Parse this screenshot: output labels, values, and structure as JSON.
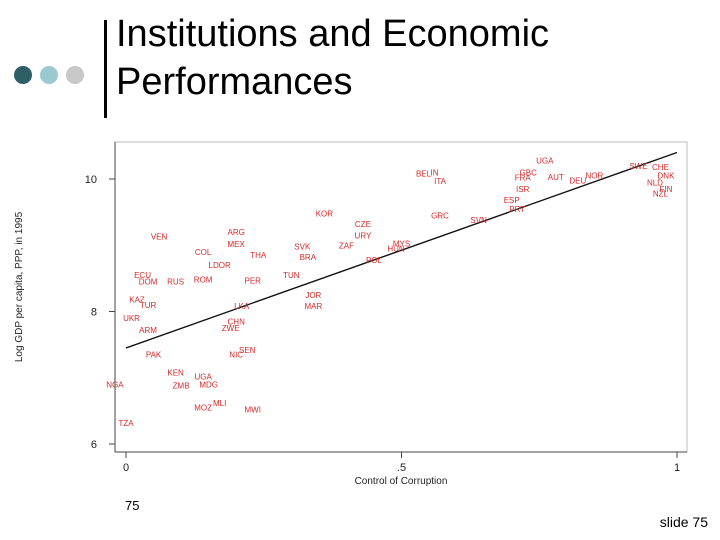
{
  "slide": {
    "title_line1": "Institutions and Economic",
    "title_line2": "Performances",
    "number": "75",
    "footer": "slide 75",
    "dot_colors": [
      "#2e5e66",
      "#9cc9cf",
      "#c8c8c8"
    ]
  },
  "chart_data": {
    "type": "scatter",
    "title": "",
    "xlabel": "Control of Corruption",
    "ylabel": "Log GDP per capita, PPP, in 1995",
    "xlim": [
      0,
      1
    ],
    "ylim": [
      6,
      10.5
    ],
    "xticks": [
      0,
      0.5,
      1
    ],
    "xtick_labels": [
      "0",
      ".5",
      "1"
    ],
    "yticks": [
      6,
      8,
      10
    ],
    "ytick_labels": [
      "6",
      "8",
      "10"
    ],
    "point_color": "#d42a2a",
    "fit_line": {
      "x": [
        0,
        1
      ],
      "y": [
        7.45,
        10.4
      ]
    },
    "points": [
      {
        "label": "UGA",
        "x": 0.76,
        "y": 10.28
      },
      {
        "label": "BEL",
        "x": 0.54,
        "y": 10.08
      },
      {
        "label": "IN",
        "x": 0.56,
        "y": 10.1
      },
      {
        "label": "ITA",
        "x": 0.57,
        "y": 9.97
      },
      {
        "label": "GBC",
        "x": 0.73,
        "y": 10.1
      },
      {
        "label": "FRA",
        "x": 0.72,
        "y": 10.02
      },
      {
        "label": "AUT",
        "x": 0.78,
        "y": 10.03
      },
      {
        "label": "NOR",
        "x": 0.85,
        "y": 10.05
      },
      {
        "label": "DEU",
        "x": 0.82,
        "y": 9.98
      },
      {
        "label": "ISR",
        "x": 0.72,
        "y": 9.85
      },
      {
        "label": "ESP",
        "x": 0.7,
        "y": 9.68
      },
      {
        "label": "PRT",
        "x": 0.71,
        "y": 9.55
      },
      {
        "label": "SWE",
        "x": 0.93,
        "y": 10.2
      },
      {
        "label": "CHE",
        "x": 0.97,
        "y": 10.18
      },
      {
        "label": "DNK",
        "x": 0.98,
        "y": 10.05
      },
      {
        "label": "NLD",
        "x": 0.96,
        "y": 9.95
      },
      {
        "label": "FIN",
        "x": 0.98,
        "y": 9.85
      },
      {
        "label": "NZL",
        "x": 0.97,
        "y": 9.78
      },
      {
        "label": "KOR",
        "x": 0.36,
        "y": 9.48
      },
      {
        "label": "CZE",
        "x": 0.43,
        "y": 9.32
      },
      {
        "label": "GRC",
        "x": 0.57,
        "y": 9.45
      },
      {
        "label": "SVN",
        "x": 0.64,
        "y": 9.38
      },
      {
        "label": "URY",
        "x": 0.43,
        "y": 9.15
      },
      {
        "label": "ZAF",
        "x": 0.4,
        "y": 9.0
      },
      {
        "label": "MYS",
        "x": 0.5,
        "y": 9.03
      },
      {
        "label": "HUN",
        "x": 0.49,
        "y": 8.95
      },
      {
        "label": "POL",
        "x": 0.45,
        "y": 8.78
      },
      {
        "label": "SVK",
        "x": 0.32,
        "y": 8.98
      },
      {
        "label": "BRA",
        "x": 0.33,
        "y": 8.82
      },
      {
        "label": "ARG",
        "x": 0.2,
        "y": 9.2
      },
      {
        "label": "MEX",
        "x": 0.2,
        "y": 9.02
      },
      {
        "label": "VEN",
        "x": 0.06,
        "y": 9.13
      },
      {
        "label": "COL",
        "x": 0.14,
        "y": 8.9
      },
      {
        "label": "THA",
        "x": 0.24,
        "y": 8.85
      },
      {
        "label": "LDOR",
        "x": 0.17,
        "y": 8.7
      },
      {
        "label": "ECU",
        "x": 0.03,
        "y": 8.55
      },
      {
        "label": "DOM",
        "x": 0.04,
        "y": 8.45
      },
      {
        "label": "RUS",
        "x": 0.09,
        "y": 8.45
      },
      {
        "label": "ROM",
        "x": 0.14,
        "y": 8.48
      },
      {
        "label": "PER",
        "x": 0.23,
        "y": 8.47
      },
      {
        "label": "TUN",
        "x": 0.3,
        "y": 8.55
      },
      {
        "label": "JOR",
        "x": 0.34,
        "y": 8.25
      },
      {
        "label": "MAR",
        "x": 0.34,
        "y": 8.08
      },
      {
        "label": "KAZ",
        "x": 0.02,
        "y": 8.18
      },
      {
        "label": "TUR",
        "x": 0.04,
        "y": 8.1
      },
      {
        "label": "LKA",
        "x": 0.21,
        "y": 8.08
      },
      {
        "label": "ZWE",
        "x": 0.19,
        "y": 7.75
      },
      {
        "label": "CHN",
        "x": 0.2,
        "y": 7.85
      },
      {
        "label": "UKR",
        "x": 0.01,
        "y": 7.9
      },
      {
        "label": "ARM",
        "x": 0.04,
        "y": 7.72
      },
      {
        "label": "PAK",
        "x": 0.05,
        "y": 7.35
      },
      {
        "label": "SEN",
        "x": 0.22,
        "y": 7.42
      },
      {
        "label": "NIC",
        "x": 0.2,
        "y": 7.35
      },
      {
        "label": "KEN",
        "x": 0.09,
        "y": 7.08
      },
      {
        "label": "UGA",
        "x": 0.14,
        "y": 7.02
      },
      {
        "label": "ZMB",
        "x": 0.1,
        "y": 6.88
      },
      {
        "label": "MDG",
        "x": 0.15,
        "y": 6.9
      },
      {
        "label": "MLI",
        "x": 0.17,
        "y": 6.62
      },
      {
        "label": "MOZ",
        "x": 0.14,
        "y": 6.55
      },
      {
        "label": "MWI",
        "x": 0.23,
        "y": 6.52
      },
      {
        "label": "NGA",
        "x": -0.02,
        "y": 6.9
      },
      {
        "label": "TZA",
        "x": 0.0,
        "y": 6.32
      }
    ]
  }
}
